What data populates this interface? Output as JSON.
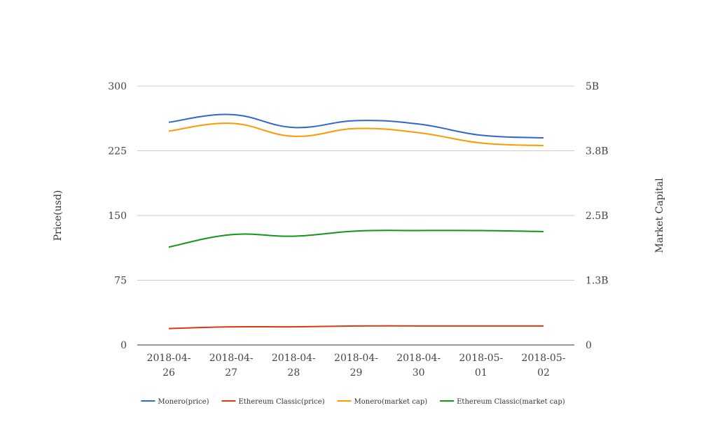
{
  "chart_data": {
    "type": "line",
    "categories": [
      "2018-04-26",
      "2018-04-27",
      "2018-04-28",
      "2018-04-29",
      "2018-04-30",
      "2018-05-01",
      "2018-05-02"
    ],
    "x_tick_labels": [
      [
        "2018-04-",
        "26"
      ],
      [
        "2018-04-",
        "27"
      ],
      [
        "2018-04-",
        "28"
      ],
      [
        "2018-04-",
        "29"
      ],
      [
        "2018-04-",
        "30"
      ],
      [
        "2018-05-",
        "01"
      ],
      [
        "2018-05-",
        "02"
      ]
    ],
    "ylabel_left": "Price(usd)",
    "ylabel_right": "Market Capital",
    "y_left_ticks": [
      "0",
      "75",
      "150",
      "225",
      "300"
    ],
    "y_right_ticks": [
      "0",
      "1.3B",
      "2.5B",
      "3.8B",
      "5B"
    ],
    "ylim_left": [
      0,
      300
    ],
    "ylim_right": [
      0,
      5000000000
    ],
    "grid": true,
    "legend_position": "bottom",
    "series": [
      {
        "name": "Monero(price)",
        "axis": "left",
        "color": "#3366cc",
        "values": [
          258,
          267,
          252,
          260,
          256,
          243,
          240
        ]
      },
      {
        "name": "Ethereum Classic(price)",
        "axis": "left",
        "color": "#dc3912",
        "values": [
          19,
          21,
          21,
          22,
          22,
          22,
          22
        ]
      },
      {
        "name": "Monero(market cap)",
        "axis": "right",
        "color": "#ff9900",
        "values": [
          4130000000,
          4280000000,
          4030000000,
          4180000000,
          4100000000,
          3900000000,
          3850000000
        ]
      },
      {
        "name": "Ethereum Classic(market cap)",
        "axis": "right",
        "color": "#109618",
        "values": [
          1890000000,
          2130000000,
          2100000000,
          2200000000,
          2210000000,
          2210000000,
          2190000000
        ]
      }
    ]
  }
}
